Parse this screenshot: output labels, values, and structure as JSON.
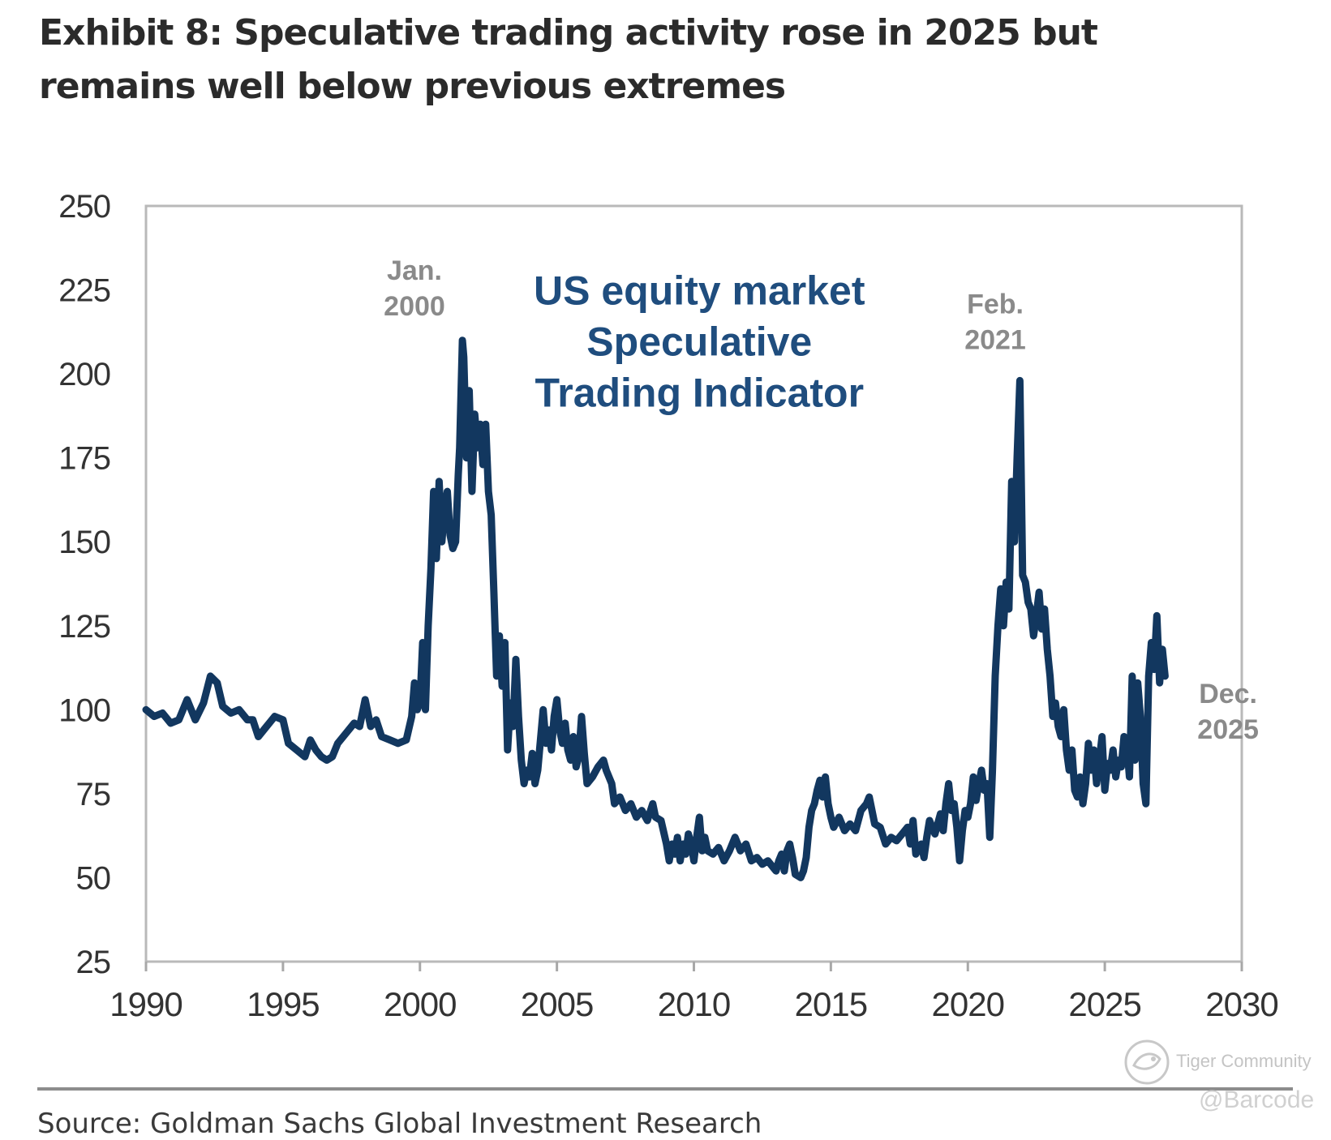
{
  "header": {
    "title_line1": "Exhibit 8: Speculative trading activity rose in 2025 but",
    "title_line2": "remains well below previous extremes"
  },
  "chart_data": {
    "type": "line",
    "title": "US equity market Speculative Trading Indicator",
    "title_lines": [
      "US equity market",
      "Speculative",
      "Trading Indicator"
    ],
    "xlabel": "",
    "ylabel": "",
    "xlim": [
      1990,
      2030
    ],
    "ylim": [
      25,
      250
    ],
    "x_ticks": [
      1990,
      1995,
      2000,
      2005,
      2010,
      2015,
      2020,
      2025,
      2030
    ],
    "y_ticks": [
      25,
      50,
      75,
      100,
      125,
      150,
      175,
      200,
      225,
      250
    ],
    "grid": false,
    "series": [
      {
        "name": "Speculative Trading Indicator",
        "color": "#12375f",
        "points": [
          [
            1990.0,
            100
          ],
          [
            1990.3,
            98
          ],
          [
            1990.6,
            99
          ],
          [
            1990.9,
            96
          ],
          [
            1991.2,
            97
          ],
          [
            1991.5,
            103
          ],
          [
            1991.8,
            97
          ],
          [
            1992.1,
            102
          ],
          [
            1992.35,
            110
          ],
          [
            1992.6,
            108
          ],
          [
            1992.8,
            101
          ],
          [
            1993.1,
            99
          ],
          [
            1993.4,
            100
          ],
          [
            1993.7,
            97
          ],
          [
            1993.9,
            97
          ],
          [
            1994.1,
            92
          ],
          [
            1994.4,
            95
          ],
          [
            1994.7,
            98
          ],
          [
            1995.0,
            97
          ],
          [
            1995.2,
            90
          ],
          [
            1995.5,
            88
          ],
          [
            1995.8,
            86
          ],
          [
            1996.0,
            91
          ],
          [
            1996.2,
            88
          ],
          [
            1996.4,
            86
          ],
          [
            1996.6,
            85
          ],
          [
            1996.8,
            86
          ],
          [
            1997.0,
            90
          ],
          [
            1997.3,
            93
          ],
          [
            1997.6,
            96
          ],
          [
            1997.8,
            95
          ],
          [
            1998.0,
            103
          ],
          [
            1998.2,
            95
          ],
          [
            1998.4,
            97
          ],
          [
            1998.6,
            92
          ],
          [
            1998.9,
            91
          ],
          [
            1999.2,
            90
          ],
          [
            1999.5,
            91
          ],
          [
            1999.7,
            98
          ],
          [
            1999.8,
            108
          ],
          [
            1999.9,
            100
          ],
          [
            2000.0,
            102
          ],
          [
            2000.1,
            120
          ],
          [
            2000.2,
            100
          ],
          [
            2000.3,
            125
          ],
          [
            2000.4,
            142
          ],
          [
            2000.5,
            165
          ],
          [
            2000.6,
            145
          ],
          [
            2000.7,
            168
          ],
          [
            2000.8,
            150
          ],
          [
            2000.9,
            160
          ],
          [
            2001.0,
            165
          ],
          [
            2001.1,
            152
          ],
          [
            2001.2,
            148
          ],
          [
            2001.3,
            150
          ],
          [
            2001.4,
            170
          ],
          [
            2001.45,
            178
          ],
          [
            2001.55,
            210
          ],
          [
            2001.6,
            205
          ],
          [
            2001.7,
            175
          ],
          [
            2001.8,
            195
          ],
          [
            2001.9,
            165
          ],
          [
            2002.0,
            188
          ],
          [
            2002.1,
            178
          ],
          [
            2002.2,
            185
          ],
          [
            2002.3,
            173
          ],
          [
            2002.4,
            185
          ],
          [
            2002.5,
            165
          ],
          [
            2002.6,
            158
          ],
          [
            2002.7,
            135
          ],
          [
            2002.8,
            110
          ],
          [
            2002.9,
            122
          ],
          [
            2003.0,
            107
          ],
          [
            2003.1,
            120
          ],
          [
            2003.2,
            88
          ],
          [
            2003.3,
            102
          ],
          [
            2003.4,
            95
          ],
          [
            2003.5,
            115
          ],
          [
            2003.6,
            98
          ],
          [
            2003.7,
            85
          ],
          [
            2003.8,
            78
          ],
          [
            2003.9,
            82
          ],
          [
            2004.0,
            80
          ],
          [
            2004.1,
            87
          ],
          [
            2004.2,
            78
          ],
          [
            2004.3,
            82
          ],
          [
            2004.5,
            100
          ],
          [
            2004.6,
            90
          ],
          [
            2004.7,
            94
          ],
          [
            2004.8,
            88
          ],
          [
            2004.9,
            98
          ],
          [
            2005.0,
            103
          ],
          [
            2005.1,
            94
          ],
          [
            2005.2,
            90
          ],
          [
            2005.3,
            96
          ],
          [
            2005.4,
            88
          ],
          [
            2005.5,
            85
          ],
          [
            2005.6,
            92
          ],
          [
            2005.7,
            83
          ],
          [
            2005.8,
            86
          ],
          [
            2005.9,
            98
          ],
          [
            2006.0,
            87
          ],
          [
            2006.1,
            78
          ],
          [
            2006.3,
            80
          ],
          [
            2006.5,
            83
          ],
          [
            2006.7,
            85
          ],
          [
            2006.8,
            82
          ],
          [
            2007.0,
            78
          ],
          [
            2007.1,
            72
          ],
          [
            2007.3,
            74
          ],
          [
            2007.5,
            70
          ],
          [
            2007.7,
            72
          ],
          [
            2007.9,
            68
          ],
          [
            2008.1,
            70
          ],
          [
            2008.3,
            67
          ],
          [
            2008.5,
            72
          ],
          [
            2008.6,
            68
          ],
          [
            2008.8,
            67
          ],
          [
            2009.0,
            60
          ],
          [
            2009.1,
            55
          ],
          [
            2009.2,
            60
          ],
          [
            2009.3,
            57
          ],
          [
            2009.4,
            62
          ],
          [
            2009.5,
            55
          ],
          [
            2009.6,
            60
          ],
          [
            2009.7,
            57
          ],
          [
            2009.8,
            63
          ],
          [
            2009.9,
            60
          ],
          [
            2010.0,
            55
          ],
          [
            2010.1,
            62
          ],
          [
            2010.2,
            68
          ],
          [
            2010.3,
            58
          ],
          [
            2010.4,
            62
          ],
          [
            2010.5,
            58
          ],
          [
            2010.7,
            57
          ],
          [
            2010.9,
            59
          ],
          [
            2011.1,
            55
          ],
          [
            2011.3,
            58
          ],
          [
            2011.5,
            62
          ],
          [
            2011.7,
            58
          ],
          [
            2011.9,
            60
          ],
          [
            2012.1,
            55
          ],
          [
            2012.3,
            56
          ],
          [
            2012.5,
            54
          ],
          [
            2012.7,
            55
          ],
          [
            2012.9,
            53
          ],
          [
            2013.0,
            52
          ],
          [
            2013.1,
            55
          ],
          [
            2013.2,
            57
          ],
          [
            2013.3,
            52
          ],
          [
            2013.4,
            58
          ],
          [
            2013.5,
            60
          ],
          [
            2013.6,
            56
          ],
          [
            2013.7,
            51
          ],
          [
            2013.9,
            50
          ],
          [
            2014.0,
            52
          ],
          [
            2014.1,
            56
          ],
          [
            2014.2,
            65
          ],
          [
            2014.3,
            70
          ],
          [
            2014.4,
            72
          ],
          [
            2014.5,
            76
          ],
          [
            2014.6,
            79
          ],
          [
            2014.7,
            74
          ],
          [
            2014.8,
            80
          ],
          [
            2014.9,
            72
          ],
          [
            2015.0,
            68
          ],
          [
            2015.1,
            65
          ],
          [
            2015.3,
            68
          ],
          [
            2015.5,
            64
          ],
          [
            2015.7,
            66
          ],
          [
            2015.9,
            64
          ],
          [
            2016.1,
            70
          ],
          [
            2016.3,
            72
          ],
          [
            2016.4,
            74
          ],
          [
            2016.6,
            66
          ],
          [
            2016.8,
            65
          ],
          [
            2017.0,
            60
          ],
          [
            2017.2,
            62
          ],
          [
            2017.4,
            61
          ],
          [
            2017.6,
            63
          ],
          [
            2017.8,
            65
          ],
          [
            2017.9,
            60
          ],
          [
            2018.0,
            67
          ],
          [
            2018.1,
            57
          ],
          [
            2018.3,
            60
          ],
          [
            2018.4,
            56
          ],
          [
            2018.5,
            62
          ],
          [
            2018.6,
            67
          ],
          [
            2018.8,
            63
          ],
          [
            2018.9,
            66
          ],
          [
            2019.0,
            69
          ],
          [
            2019.1,
            64
          ],
          [
            2019.2,
            72
          ],
          [
            2019.3,
            78
          ],
          [
            2019.4,
            70
          ],
          [
            2019.5,
            72
          ],
          [
            2019.6,
            65
          ],
          [
            2019.7,
            55
          ],
          [
            2019.8,
            64
          ],
          [
            2019.9,
            70
          ],
          [
            2020.0,
            68
          ],
          [
            2020.1,
            72
          ],
          [
            2020.2,
            80
          ],
          [
            2020.3,
            73
          ],
          [
            2020.4,
            78
          ],
          [
            2020.5,
            82
          ],
          [
            2020.6,
            76
          ],
          [
            2020.7,
            78
          ],
          [
            2020.8,
            62
          ],
          [
            2020.9,
            82
          ],
          [
            2021.0,
            110
          ],
          [
            2021.1,
            125
          ],
          [
            2021.2,
            136
          ],
          [
            2021.3,
            125
          ],
          [
            2021.4,
            138
          ],
          [
            2021.5,
            130
          ],
          [
            2021.6,
            168
          ],
          [
            2021.7,
            150
          ],
          [
            2021.8,
            175
          ],
          [
            2021.9,
            198
          ],
          [
            2022.0,
            140
          ],
          [
            2022.1,
            138
          ],
          [
            2022.2,
            132
          ],
          [
            2022.3,
            130
          ],
          [
            2022.4,
            122
          ],
          [
            2022.5,
            128
          ],
          [
            2022.6,
            135
          ],
          [
            2022.7,
            124
          ],
          [
            2022.8,
            130
          ],
          [
            2022.9,
            118
          ],
          [
            2023.0,
            110
          ],
          [
            2023.1,
            98
          ],
          [
            2023.2,
            102
          ],
          [
            2023.3,
            95
          ],
          [
            2023.4,
            92
          ],
          [
            2023.5,
            100
          ],
          [
            2023.6,
            88
          ],
          [
            2023.7,
            82
          ],
          [
            2023.8,
            88
          ],
          [
            2023.9,
            76
          ],
          [
            2024.0,
            74
          ],
          [
            2024.1,
            80
          ],
          [
            2024.2,
            72
          ],
          [
            2024.3,
            78
          ],
          [
            2024.4,
            90
          ],
          [
            2024.5,
            82
          ],
          [
            2024.6,
            88
          ],
          [
            2024.7,
            78
          ],
          [
            2024.8,
            85
          ],
          [
            2024.9,
            92
          ],
          [
            2025.0,
            76
          ],
          [
            2025.1,
            84
          ],
          [
            2025.2,
            82
          ],
          [
            2025.3,
            88
          ],
          [
            2025.4,
            80
          ],
          [
            2025.5,
            85
          ],
          [
            2025.6,
            83
          ],
          [
            2025.7,
            92
          ],
          [
            2025.8,
            90
          ],
          [
            2025.9,
            80
          ],
          [
            2026.0,
            110
          ],
          [
            2026.1,
            85
          ],
          [
            2026.2,
            108
          ],
          [
            2026.3,
            98
          ],
          [
            2026.4,
            78
          ],
          [
            2026.5,
            72
          ],
          [
            2026.6,
            110
          ],
          [
            2026.7,
            120
          ],
          [
            2026.8,
            112
          ],
          [
            2026.9,
            128
          ],
          [
            2027.0,
            108
          ],
          [
            2027.1,
            118
          ],
          [
            2027.2,
            110
          ]
        ]
      }
    ],
    "annotations": [
      {
        "id": "jan-2000",
        "lines": [
          "Jan.",
          "2000"
        ],
        "x": 1999.8,
        "y": 228
      },
      {
        "id": "feb-2021",
        "lines": [
          "Feb.",
          "2021"
        ],
        "x": 2021.0,
        "y": 218
      },
      {
        "id": "dec-2025",
        "lines": [
          "Dec.",
          "2025"
        ],
        "x": 2029.5,
        "y": 102
      }
    ],
    "colors": {
      "line": "#12375f",
      "title": "#1f4d7e",
      "annotation": "#8a8a8a",
      "frame": "#b9b9b9",
      "axis": "#a8a8a8"
    }
  },
  "footer": {
    "source": "Source: Goldman Sachs Global Investment Research"
  },
  "watermark": {
    "name": "Tiger Community",
    "handle": "@Barcode"
  }
}
